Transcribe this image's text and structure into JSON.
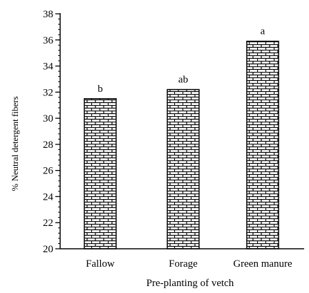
{
  "chart_data": {
    "type": "bar",
    "title": "",
    "xlabel": "Pre-planting of vetch",
    "ylabel": "% Neutral detergent fibers",
    "categories": [
      "Fallow",
      "Forage",
      "Green manure"
    ],
    "values": [
      31.5,
      32.2,
      35.9
    ],
    "data_labels": [
      "b",
      "ab",
      "a"
    ],
    "ylim": [
      20,
      38
    ],
    "yticks": [
      20,
      22,
      24,
      26,
      28,
      30,
      32,
      34,
      36,
      38
    ],
    "minor_tick_step": 0.4,
    "grid": false,
    "legend": "none",
    "bar_pattern": "brick",
    "colors": {
      "bar_fill": "#ffffff",
      "bar_pattern": "#000000",
      "axis": "#000000"
    }
  }
}
